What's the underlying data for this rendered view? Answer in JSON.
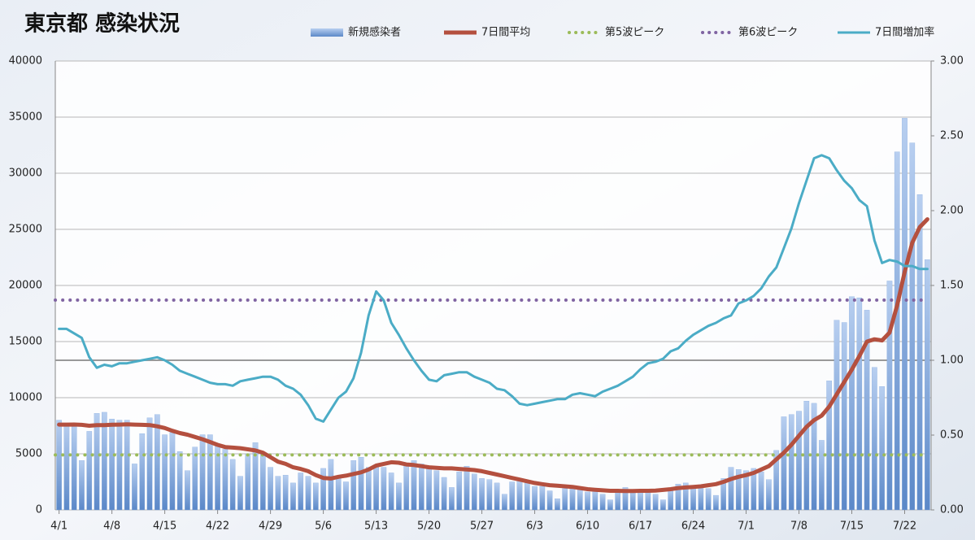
{
  "chart_data": {
    "type": "bar",
    "title": "東京都 感染状況",
    "categories": [
      "4/1",
      null,
      null,
      null,
      null,
      null,
      null,
      "4/8",
      null,
      null,
      null,
      null,
      null,
      null,
      "4/15",
      null,
      null,
      null,
      null,
      null,
      null,
      "4/22",
      null,
      null,
      null,
      null,
      null,
      null,
      "4/29",
      null,
      null,
      null,
      null,
      null,
      null,
      "5/6",
      null,
      null,
      null,
      null,
      null,
      null,
      "5/13",
      null,
      null,
      null,
      null,
      null,
      null,
      "5/20",
      null,
      null,
      null,
      null,
      null,
      null,
      "5/27",
      null,
      null,
      null,
      null,
      null,
      null,
      "6/3",
      null,
      null,
      null,
      null,
      null,
      null,
      "6/10",
      null,
      null,
      null,
      null,
      null,
      null,
      "6/17",
      null,
      null,
      null,
      null,
      null,
      null,
      "6/24",
      null,
      null,
      null,
      null,
      null,
      null,
      "7/1",
      null,
      null,
      null,
      null,
      null,
      null,
      "7/8",
      null,
      null,
      null,
      null,
      null,
      null,
      "7/15",
      null,
      null,
      null,
      null,
      null,
      null,
      "7/22",
      null,
      null,
      null
    ],
    "series": [
      {
        "name": "新規感染者",
        "type": "bar",
        "color": "#7ea6dc",
        "values": [
          8000,
          7700,
          7600,
          4400,
          7000,
          8600,
          8700,
          8100,
          8000,
          8000,
          4100,
          6800,
          8200,
          8500,
          6700,
          6900,
          5200,
          3500,
          5600,
          6700,
          6700,
          5800,
          5400,
          4500,
          3000,
          5000,
          6000,
          5100,
          3800,
          3000,
          3100,
          2400,
          3300,
          3000,
          2400,
          3700,
          4500,
          3000,
          2500,
          4400,
          4700,
          3800,
          4000,
          3800,
          3300,
          2400,
          3900,
          4400,
          4100,
          3700,
          3500,
          2900,
          2000,
          3400,
          3900,
          3200,
          2800,
          2700,
          2400,
          1400,
          2500,
          2600,
          2400,
          2100,
          2100,
          1700,
          1000,
          1900,
          2100,
          1800,
          1600,
          1700,
          1400,
          900,
          1700,
          2000,
          1700,
          1600,
          1600,
          1400,
          900,
          1800,
          2300,
          2400,
          2100,
          2100,
          1900,
          1300,
          2800,
          3800,
          3600,
          3500,
          3700,
          3400,
          2700,
          5300,
          8300,
          8500,
          8800,
          9700,
          9500,
          6200,
          11500,
          16900,
          16700,
          19000,
          18900,
          17800,
          12700,
          11000,
          20400,
          31900,
          34900,
          32700,
          28100,
          22300
        ]
      },
      {
        "name": "7日間平均",
        "type": "line",
        "color": "#b4503f",
        "values": [
          7600,
          7600,
          7610,
          7580,
          7500,
          7550,
          7560,
          7590,
          7600,
          7620,
          7600,
          7580,
          7560,
          7450,
          7300,
          7050,
          6850,
          6700,
          6500,
          6300,
          6050,
          5800,
          5600,
          5550,
          5500,
          5400,
          5300,
          5100,
          4700,
          4300,
          4100,
          3800,
          3650,
          3450,
          3100,
          2850,
          2800,
          2950,
          3050,
          3200,
          3350,
          3600,
          3950,
          4100,
          4250,
          4200,
          4050,
          4000,
          3900,
          3800,
          3750,
          3700,
          3700,
          3650,
          3600,
          3550,
          3450,
          3300,
          3150,
          3000,
          2850,
          2700,
          2550,
          2400,
          2300,
          2200,
          2150,
          2100,
          2050,
          1950,
          1850,
          1800,
          1750,
          1700,
          1700,
          1680,
          1680,
          1700,
          1700,
          1720,
          1780,
          1850,
          1950,
          2000,
          2050,
          2100,
          2200,
          2300,
          2500,
          2750,
          2950,
          3100,
          3300,
          3600,
          3900,
          4500,
          5100,
          5800,
          6600,
          7400,
          8000,
          8400,
          9200,
          10300,
          11400,
          12500,
          13700,
          15000,
          15200,
          15100,
          15800,
          18200,
          21200,
          23800,
          25200,
          25900
        ]
      },
      {
        "name": "第5波ピーク",
        "type": "hline",
        "color": "#9bbb59",
        "value": 4900
      },
      {
        "name": "第6波ピーク",
        "type": "hline",
        "color": "#8064a2",
        "value": 18700
      },
      {
        "name": "7日間増加率",
        "type": "line",
        "axis": "y2",
        "color": "#4bacc6",
        "values": [
          1.21,
          1.21,
          1.18,
          1.15,
          1.02,
          0.95,
          0.97,
          0.96,
          0.98,
          0.98,
          0.99,
          1.0,
          1.01,
          1.02,
          1.0,
          0.97,
          0.93,
          0.91,
          0.89,
          0.87,
          0.85,
          0.84,
          0.84,
          0.83,
          0.86,
          0.87,
          0.88,
          0.89,
          0.89,
          0.87,
          0.83,
          0.81,
          0.77,
          0.7,
          0.61,
          0.59,
          0.67,
          0.75,
          0.79,
          0.88,
          1.05,
          1.3,
          1.46,
          1.4,
          1.25,
          1.17,
          1.08,
          1.0,
          0.93,
          0.87,
          0.86,
          0.9,
          0.91,
          0.92,
          0.92,
          0.89,
          0.87,
          0.85,
          0.81,
          0.8,
          0.76,
          0.71,
          0.7,
          0.71,
          0.72,
          0.73,
          0.74,
          0.74,
          0.77,
          0.78,
          0.77,
          0.76,
          0.79,
          0.81,
          0.83,
          0.86,
          0.89,
          0.94,
          0.98,
          0.99,
          1.01,
          1.06,
          1.08,
          1.13,
          1.17,
          1.2,
          1.23,
          1.25,
          1.28,
          1.3,
          1.38,
          1.4,
          1.43,
          1.48,
          1.56,
          1.62,
          1.75,
          1.88,
          2.05,
          2.2,
          2.35,
          2.37,
          2.35,
          2.27,
          2.2,
          2.15,
          2.07,
          2.03,
          1.8,
          1.65,
          1.67,
          1.66,
          1.63,
          1.63,
          1.61,
          1.61
        ]
      }
    ],
    "ylim": [
      0,
      40000
    ],
    "yticks": [
      0,
      5000,
      10000,
      15000,
      20000,
      25000,
      30000,
      35000,
      40000
    ],
    "y2lim": [
      0,
      3
    ],
    "y2ticks": [
      {
        "value": 0,
        "label": "0.00"
      },
      {
        "value": 0.5,
        "label": "0.50"
      },
      {
        "value": 1,
        "label": "1.00"
      },
      {
        "value": 1.5,
        "label": "1.50"
      },
      {
        "value": 2,
        "label": "2.00"
      },
      {
        "value": 2.5,
        "label": "2.50"
      },
      {
        "value": 3,
        "label": "3.00"
      }
    ],
    "y2_reference": 1,
    "grid": true
  }
}
